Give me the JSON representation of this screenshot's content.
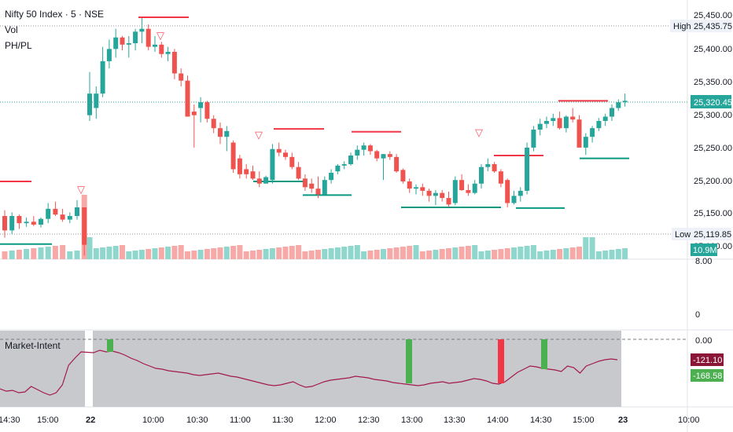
{
  "header": {
    "title": "Nifty 50 Index · 5 · NSE",
    "line2": "Vol",
    "line3": "PH/PL"
  },
  "price_axis": {
    "ticks": [
      "25,450.00",
      "25,400.00",
      "25,350.00",
      "25,300.00",
      "25,250.00",
      "25,200.00",
      "25,150.00",
      "25,100.00"
    ],
    "high_label": "High",
    "high_value": "25,435.75",
    "current_value": "25,320.45",
    "low_label": "Low",
    "low_value": "25,119.85",
    "volume_value": "10.9M"
  },
  "volume_axis": {
    "ticks": [
      "8.00",
      "0"
    ]
  },
  "indicator": {
    "name": "Market-Intent",
    "zero_label": "0.00",
    "tag1": "-121.10",
    "tag2": "-168.58"
  },
  "time_axis": {
    "labels": [
      "14:30",
      "15:00",
      "22",
      "10:00",
      "10:30",
      "11:00",
      "11:30",
      "12:00",
      "12:30",
      "13:00",
      "13:30",
      "14:00",
      "14:30",
      "15:00",
      "23",
      "10:00"
    ]
  },
  "colors": {
    "up": "#26a69a",
    "down": "#ef5350",
    "ph": "#f23645",
    "pl": "#089981",
    "intent_line": "#a3194b",
    "intent_bg": "#c8c9cc"
  },
  "chart_data": {
    "type": "candlestick",
    "title": "Nifty 50 Index · 5 · NSE",
    "ohlc_approx": [
      [
        25160,
        25168,
        25130,
        25140
      ],
      [
        25140,
        25165,
        25135,
        25160
      ],
      [
        25160,
        25162,
        25142,
        25150
      ],
      [
        25150,
        25158,
        25145,
        25152
      ],
      [
        25152,
        25160,
        25146,
        25148
      ],
      [
        25148,
        25158,
        25144,
        25156
      ],
      [
        25156,
        25178,
        25150,
        25170
      ],
      [
        25170,
        25180,
        25160,
        25162
      ],
      [
        25162,
        25170,
        25152,
        25155
      ],
      [
        25155,
        25165,
        25150,
        25160
      ],
      [
        25160,
        25182,
        25155,
        25172
      ],
      [
        25172,
        25172,
        25105,
        25120
      ],
      [
        25300,
        25360,
        25292,
        25330
      ],
      [
        25310,
        25340,
        25295,
        25330
      ],
      [
        25330,
        25395,
        25325,
        25375
      ],
      [
        25375,
        25405,
        25365,
        25392
      ],
      [
        25392,
        25420,
        25380,
        25408
      ],
      [
        25408,
        25410,
        25390,
        25398
      ],
      [
        25398,
        25410,
        25380,
        25400
      ],
      [
        25400,
        25420,
        25390,
        25416
      ],
      [
        25416,
        25435,
        25400,
        25420
      ],
      [
        25420,
        25426,
        25390,
        25395
      ],
      [
        25395,
        25410,
        25388,
        25398
      ],
      [
        25398,
        25402,
        25380,
        25385
      ],
      [
        25385,
        25395,
        25375,
        25388
      ],
      [
        25388,
        25392,
        25350,
        25358
      ],
      [
        25358,
        25365,
        25340,
        25348
      ],
      [
        25348,
        25355,
        25300,
        25298
      ],
      [
        25305,
        25315,
        25255,
        25300
      ],
      [
        25310,
        25325,
        25290,
        25318
      ],
      [
        25318,
        25320,
        25290,
        25295
      ],
      [
        25295,
        25300,
        25275,
        25282
      ],
      [
        25282,
        25290,
        25260,
        25270
      ],
      [
        25270,
        25285,
        25250,
        25278
      ],
      [
        25262,
        25265,
        25220,
        25225
      ],
      [
        25240,
        25245,
        25212,
        25218
      ],
      [
        25225,
        25232,
        25212,
        25218
      ],
      [
        25222,
        25230,
        25210,
        25212
      ],
      [
        25212,
        25222,
        25200,
        25205
      ],
      [
        25205,
        25216,
        25208,
        25214
      ],
      [
        25210,
        25260,
        25205,
        25253
      ],
      [
        25253,
        25262,
        25243,
        25248
      ],
      [
        25248,
        25252,
        25238,
        25242
      ],
      [
        25242,
        25248,
        25225,
        25228
      ],
      [
        25228,
        25235,
        25210,
        25212
      ],
      [
        25212,
        25218,
        25195,
        25200
      ],
      [
        25205,
        25212,
        25192,
        25198
      ],
      [
        25198,
        25215,
        25185,
        25190
      ],
      [
        25190,
        25215,
        25188,
        25210
      ],
      [
        25210,
        25225,
        25205,
        25220
      ],
      [
        25222,
        25232,
        25218,
        25230
      ],
      [
        25230,
        25236,
        25225,
        25232
      ],
      [
        25232,
        25248,
        25230,
        25244
      ],
      [
        25244,
        25258,
        25238,
        25252
      ],
      [
        25252,
        25262,
        25244,
        25258
      ],
      [
        25258,
        25260,
        25245,
        25250
      ],
      [
        25250,
        25252,
        25236,
        25240
      ],
      [
        25240,
        25246,
        25210,
        25246
      ],
      [
        25246,
        25250,
        25238,
        25242
      ],
      [
        25242,
        25246,
        25220,
        25222
      ],
      [
        25224,
        25226,
        25205,
        25208
      ],
      [
        25208,
        25212,
        25192,
        25198
      ],
      [
        25198,
        25204,
        25190,
        25200
      ],
      [
        25200,
        25205,
        25188,
        25195
      ],
      [
        25195,
        25198,
        25180,
        25188
      ],
      [
        25188,
        25196,
        25175,
        25192
      ],
      [
        25192,
        25196,
        25180,
        25185
      ],
      [
        25185,
        25194,
        25172,
        25176
      ],
      [
        25178,
        25215,
        25175,
        25210
      ],
      [
        25210,
        25218,
        25195,
        25196
      ],
      [
        25196,
        25204,
        25188,
        25192
      ],
      [
        25192,
        25210,
        25190,
        25205
      ],
      [
        25205,
        25232,
        25198,
        25228
      ],
      [
        25228,
        25240,
        25222,
        25232
      ],
      [
        25232,
        25235,
        25220,
        25222
      ],
      [
        25222,
        25225,
        25200,
        25205
      ],
      [
        25210,
        25212,
        25172,
        25178
      ],
      [
        25178,
        25195,
        25176,
        25188
      ],
      [
        25188,
        25200,
        25180,
        25195
      ],
      [
        25195,
        25262,
        25190,
        25255
      ],
      [
        25255,
        25285,
        25250,
        25280
      ],
      [
        25280,
        25295,
        25272,
        25288
      ],
      [
        25288,
        25298,
        25282,
        25292
      ],
      [
        25292,
        25302,
        25285,
        25296
      ],
      [
        25296,
        25305,
        25280,
        25282
      ],
      [
        25282,
        25300,
        25276,
        25298
      ],
      [
        25298,
        25310,
        25290,
        25294
      ],
      [
        25294,
        25300,
        25262,
        25255
      ],
      [
        25255,
        25275,
        25245,
        25270
      ],
      [
        25270,
        25285,
        25262,
        25282
      ],
      [
        25282,
        25296,
        25278,
        25292
      ],
      [
        25292,
        25302,
        25285,
        25298
      ],
      [
        25298,
        25315,
        25292,
        25310
      ],
      [
        25310,
        25322,
        25306,
        25318
      ],
      [
        25318,
        25330,
        25312,
        25320
      ]
    ],
    "y_range": [
      25100,
      25460
    ],
    "markers": {
      "pivot_high": "▽",
      "pivot_low": "none visible"
    }
  }
}
